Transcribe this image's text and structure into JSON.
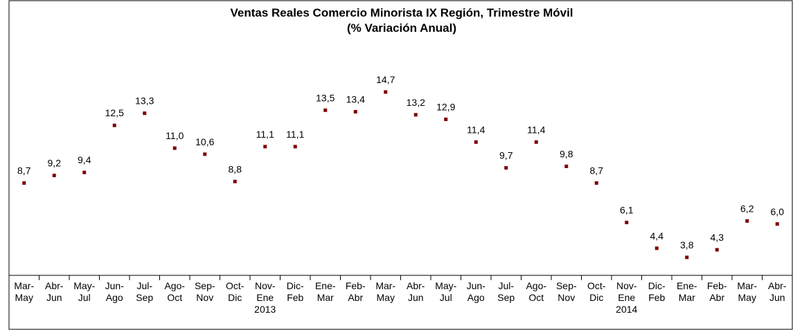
{
  "chart_data": {
    "type": "line",
    "title": "Ventas Reales Comercio Minorista IX Región, Trimestre Móvil",
    "subtitle": "(% Variación Anual)",
    "categories": [
      "Mar-\nMay",
      "Abr-\nJun",
      "May-\nJul",
      "Jun-\nAgo",
      "Jul-\nSep",
      "Ago-\nOct",
      "Sep-\nNov",
      "Oct-\nDic",
      "Nov-\nEne\n2013",
      "Dic-\nFeb",
      "Ene-\nMar",
      "Feb-\nAbr",
      "Mar-\nMay",
      "Abr-\nJun",
      "May-\nJul",
      "Jun-\nAgo",
      "Jul-\nSep",
      "Ago-\nOct",
      "Sep-\nNov",
      "Oct-\nDic",
      "Nov-\nEne\n2014",
      "Dic-\nFeb",
      "Ene-\nMar",
      "Feb-\nAbr",
      "Mar-\nMay",
      "Abr-\nJun"
    ],
    "series": [
      {
        "name": "Ventas Reales",
        "color": "#7f0000",
        "values": [
          8.7,
          9.2,
          9.4,
          12.5,
          13.3,
          11.0,
          10.6,
          8.8,
          11.1,
          11.1,
          13.5,
          13.4,
          14.7,
          13.2,
          12.9,
          11.4,
          9.7,
          11.4,
          9.8,
          8.7,
          6.1,
          4.4,
          3.8,
          4.3,
          6.2,
          6.0
        ],
        "value_labels": [
          "8,7",
          "9,2",
          "9,4",
          "12,5",
          "13,3",
          "11,0",
          "10,6",
          "8,8",
          "11,1",
          "11,1",
          "13,5",
          "13,4",
          "14,7",
          "13,2",
          "12,9",
          "11,4",
          "9,7",
          "11,4",
          "9,8",
          "8,7",
          "6,1",
          "4,4",
          "3,8",
          "4,3",
          "6,2",
          "6,0"
        ]
      }
    ]
  }
}
